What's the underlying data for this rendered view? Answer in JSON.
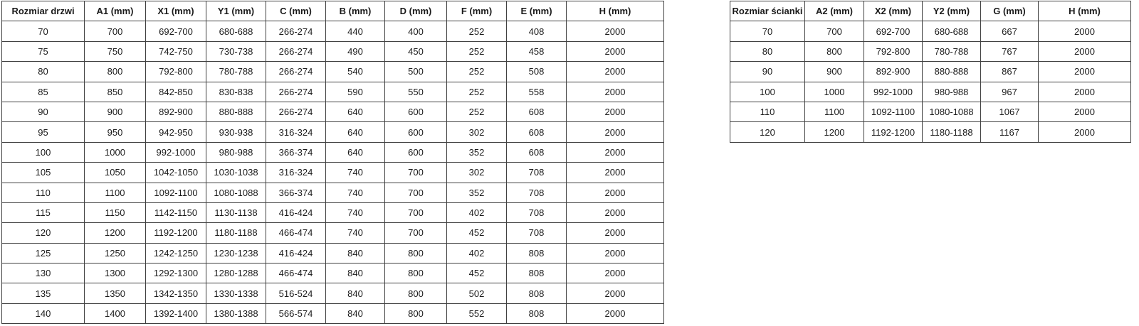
{
  "doors_table": {
    "headers": [
      "Rozmiar drzwi",
      "A1 (mm)",
      "X1 (mm)",
      "Y1 (mm)",
      "C (mm)",
      "B (mm)",
      "D (mm)",
      "F (mm)",
      "E (mm)",
      "H (mm)"
    ],
    "rows": [
      [
        "70",
        "700",
        "692-700",
        "680-688",
        "266-274",
        "440",
        "400",
        "252",
        "408",
        "2000"
      ],
      [
        "75",
        "750",
        "742-750",
        "730-738",
        "266-274",
        "490",
        "450",
        "252",
        "458",
        "2000"
      ],
      [
        "80",
        "800",
        "792-800",
        "780-788",
        "266-274",
        "540",
        "500",
        "252",
        "508",
        "2000"
      ],
      [
        "85",
        "850",
        "842-850",
        "830-838",
        "266-274",
        "590",
        "550",
        "252",
        "558",
        "2000"
      ],
      [
        "90",
        "900",
        "892-900",
        "880-888",
        "266-274",
        "640",
        "600",
        "252",
        "608",
        "2000"
      ],
      [
        "95",
        "950",
        "942-950",
        "930-938",
        "316-324",
        "640",
        "600",
        "302",
        "608",
        "2000"
      ],
      [
        "100",
        "1000",
        "992-1000",
        "980-988",
        "366-374",
        "640",
        "600",
        "352",
        "608",
        "2000"
      ],
      [
        "105",
        "1050",
        "1042-1050",
        "1030-1038",
        "316-324",
        "740",
        "700",
        "302",
        "708",
        "2000"
      ],
      [
        "110",
        "1100",
        "1092-1100",
        "1080-1088",
        "366-374",
        "740",
        "700",
        "352",
        "708",
        "2000"
      ],
      [
        "115",
        "1150",
        "1142-1150",
        "1130-1138",
        "416-424",
        "740",
        "700",
        "402",
        "708",
        "2000"
      ],
      [
        "120",
        "1200",
        "1192-1200",
        "1180-1188",
        "466-474",
        "740",
        "700",
        "452",
        "708",
        "2000"
      ],
      [
        "125",
        "1250",
        "1242-1250",
        "1230-1238",
        "416-424",
        "840",
        "800",
        "402",
        "808",
        "2000"
      ],
      [
        "130",
        "1300",
        "1292-1300",
        "1280-1288",
        "466-474",
        "840",
        "800",
        "452",
        "808",
        "2000"
      ],
      [
        "135",
        "1350",
        "1342-1350",
        "1330-1338",
        "516-524",
        "840",
        "800",
        "502",
        "808",
        "2000"
      ],
      [
        "140",
        "1400",
        "1392-1400",
        "1380-1388",
        "566-574",
        "840",
        "800",
        "552",
        "808",
        "2000"
      ]
    ]
  },
  "walls_table": {
    "headers": [
      "Rozmiar ścianki",
      "A2 (mm)",
      "X2 (mm)",
      "Y2 (mm)",
      "G (mm)",
      "H (mm)"
    ],
    "rows": [
      [
        "70",
        "700",
        "692-700",
        "680-688",
        "667",
        "2000"
      ],
      [
        "80",
        "800",
        "792-800",
        "780-788",
        "767",
        "2000"
      ],
      [
        "90",
        "900",
        "892-900",
        "880-888",
        "867",
        "2000"
      ],
      [
        "100",
        "1000",
        "992-1000",
        "980-988",
        "967",
        "2000"
      ],
      [
        "110",
        "1100",
        "1092-1100",
        "1080-1088",
        "1067",
        "2000"
      ],
      [
        "120",
        "1200",
        "1192-1200",
        "1180-1188",
        "1167",
        "2000"
      ]
    ]
  },
  "colors": {
    "border": "#404040",
    "text": "#1a1a1a",
    "background": "#ffffff"
  }
}
